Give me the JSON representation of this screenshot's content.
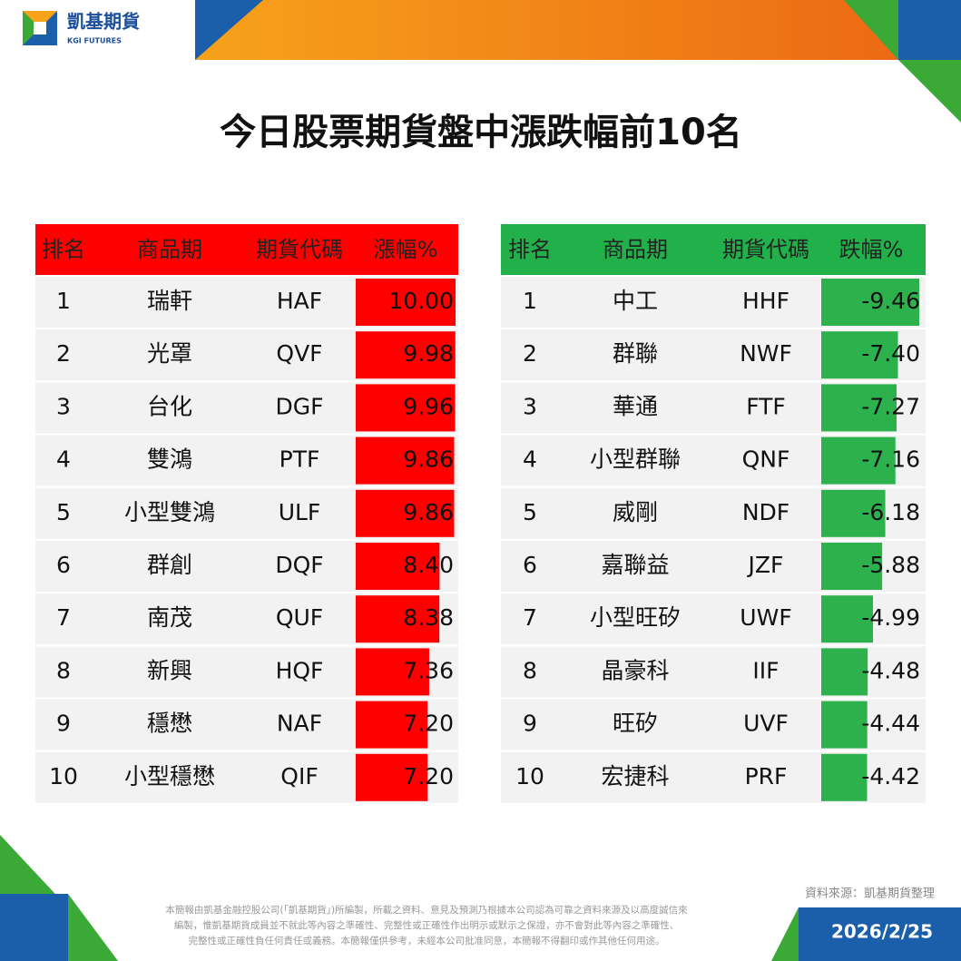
{
  "header": {
    "brand": "凱基期貨",
    "brand_en": "KGI FUTURES"
  },
  "title": "今日股票期貨盤中漲跌幅前10名",
  "gainers": {
    "columns": [
      "排名",
      "商品期",
      "期貨代碼",
      "漲幅%"
    ],
    "rows": [
      [
        "1",
        "瑞軒",
        "HAF",
        "10.00"
      ],
      [
        "2",
        "光罩",
        "QVF",
        "9.98"
      ],
      [
        "3",
        "台化",
        "DGF",
        "9.96"
      ],
      [
        "4",
        "雙鴻",
        "PTF",
        "9.86"
      ],
      [
        "5",
        "小型雙鴻",
        "ULF",
        "9.86"
      ],
      [
        "6",
        "群創",
        "DQF",
        "8.40"
      ],
      [
        "7",
        "南茂",
        "QUF",
        "8.38"
      ],
      [
        "8",
        "新興",
        "HQF",
        "7.36"
      ],
      [
        "9",
        "穩懋",
        "NAF",
        "7.20"
      ],
      [
        "10",
        "小型穩懋",
        "QIF",
        "7.20"
      ]
    ]
  },
  "losers": {
    "columns": [
      "排名",
      "商品期",
      "期貨代碼",
      "跌幅%"
    ],
    "rows": [
      [
        "1",
        "中工",
        "HHF",
        "-9.46"
      ],
      [
        "2",
        "群聯",
        "NWF",
        "-7.40"
      ],
      [
        "3",
        "華通",
        "FTF",
        "-7.27"
      ],
      [
        "4",
        "小型群聯",
        "QNF",
        "-7.16"
      ],
      [
        "5",
        "威剛",
        "NDF",
        "-6.18"
      ],
      [
        "6",
        "嘉聯益",
        "JZF",
        "-5.88"
      ],
      [
        "7",
        "小型旺矽",
        "UWF",
        "-4.99"
      ],
      [
        "8",
        "晶豪科",
        "IIF",
        "-4.48"
      ],
      [
        "9",
        "旺矽",
        "UVF",
        "-4.44"
      ],
      [
        "10",
        "宏捷科",
        "PRF",
        "-4.42"
      ]
    ]
  },
  "source": "資料來源：凱基期貨整理",
  "disclaimer": [
    "本簡報由凱基金融控股公司(「凱基期貨」)所編製，所載之資料、意見及預測乃根據本公司認為可靠之資料來源及以高度誠信來",
    "編製，惟凱基期貨成員並不就此等內容之準確性、完整性或正確性作出明示或默示之保證，亦不會對此等內容之準確性、",
    "完整性或正確性負任何責任或義務。本簡報僅供參考，未經本公司批准同意，本簡報不得翻印或作其他任何用途。"
  ],
  "date": "2026/2/25"
}
